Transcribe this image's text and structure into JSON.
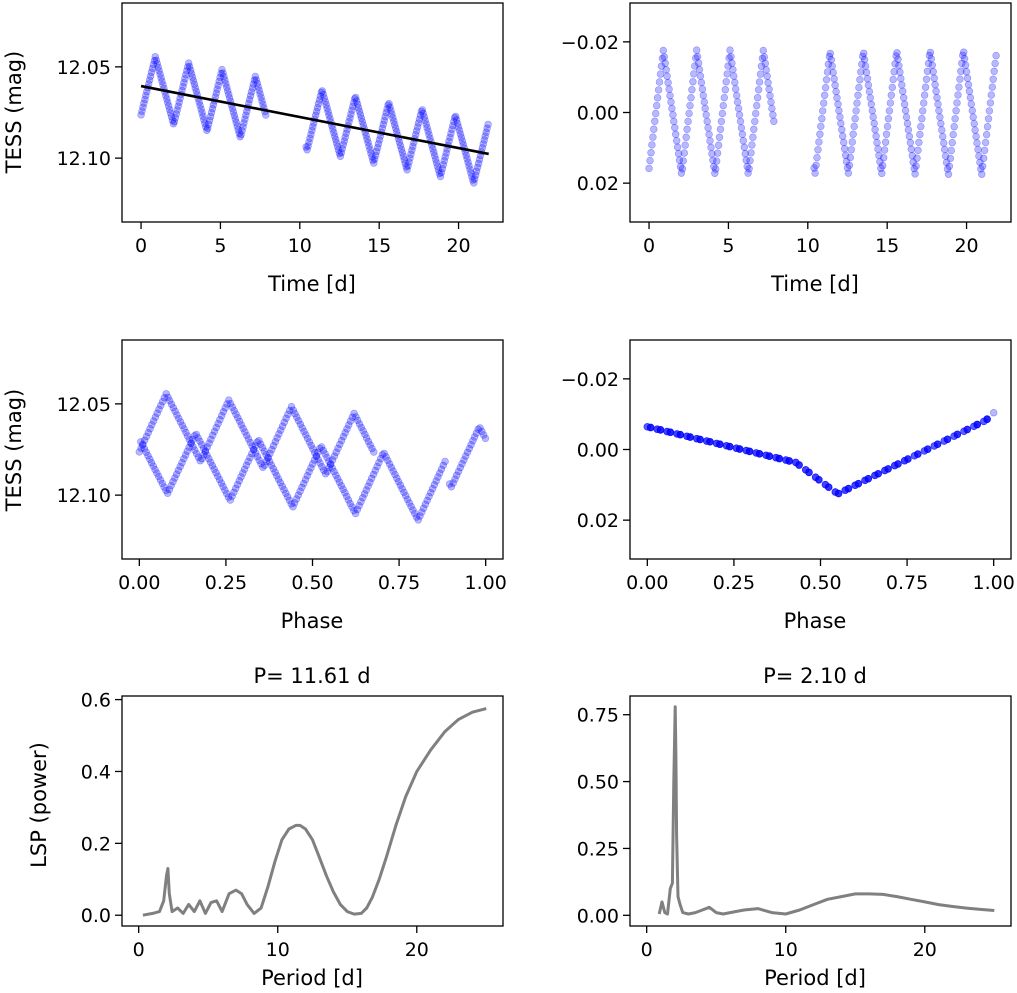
{
  "colors": {
    "points": "#0000ff",
    "trend": "#000000",
    "lsp": "#808080",
    "axes": "#000000"
  },
  "chart_data": [
    {
      "id": "lc_raw",
      "type": "scatter",
      "title": "",
      "xlabel": "Time [d]",
      "ylabel": "TESS (mag)",
      "xlim": [
        -1.2,
        22.8
      ],
      "ylim": [
        12.135,
        12.015
      ],
      "xticks": [
        0,
        5,
        10,
        15,
        20
      ],
      "xtick_labels": [
        "0",
        "5",
        "10",
        "15",
        "20"
      ],
      "yticks": [
        12.05,
        12.1
      ],
      "ytick_labels": [
        "12.05",
        "12.10"
      ],
      "signal": {
        "baseline": 12.0605,
        "slope": 0.0017,
        "amplitude": 0.0175,
        "period_short": 2.1,
        "amp_mod": 0.01,
        "phase": 1.2
      },
      "segments": [
        [
          0,
          7.9
        ],
        [
          10.4,
          21.9
        ]
      ],
      "trend_line": {
        "x": [
          0,
          21.9
        ],
        "y": [
          12.0605,
          12.0977
        ]
      }
    },
    {
      "id": "lc_detrended",
      "type": "scatter",
      "title": "",
      "xlabel": "Time [d]",
      "ylabel": "",
      "xlim": [
        -1.2,
        22.8
      ],
      "ylim": [
        0.031,
        -0.031
      ],
      "xticks": [
        0,
        5,
        10,
        15,
        20
      ],
      "xtick_labels": [
        "0",
        "5",
        "10",
        "15",
        "20"
      ],
      "yticks": [
        -0.02,
        0.0,
        0.02
      ],
      "ytick_labels": [
        "−0.02",
        "0.00",
        "0.02"
      ],
      "signal": {
        "baseline": 0.0,
        "slope": 0,
        "amplitude": 0.0175,
        "period_short": 2.1,
        "amp_mod": 0.01,
        "phase": 1.2
      },
      "segments": [
        [
          0,
          7.9
        ],
        [
          10.4,
          21.9
        ]
      ]
    },
    {
      "id": "phase_long",
      "type": "scatter",
      "title": "",
      "xlabel": "Phase",
      "ylabel": "TESS (mag)",
      "xlim": [
        -0.05,
        1.05
      ],
      "ylim": [
        12.135,
        12.015
      ],
      "xticks": [
        0.0,
        0.25,
        0.5,
        0.75,
        1.0
      ],
      "xtick_labels": [
        "0.00",
        "0.25",
        "0.50",
        "0.75",
        "1.00"
      ],
      "yticks": [
        12.05,
        12.1
      ],
      "ytick_labels": [
        "12.05",
        "12.10"
      ],
      "fold_period": 11.61
    },
    {
      "id": "phase_short",
      "type": "scatter",
      "title": "",
      "xlabel": "Phase",
      "ylabel": "",
      "xlim": [
        -0.05,
        1.05
      ],
      "ylim": [
        0.031,
        -0.031
      ],
      "xticks": [
        0.0,
        0.25,
        0.5,
        0.75,
        1.0
      ],
      "xtick_labels": [
        "0.00",
        "0.25",
        "0.50",
        "0.75",
        "1.00"
      ],
      "yticks": [
        -0.02,
        0.0,
        0.02
      ],
      "ytick_labels": [
        "−0.02",
        "0.00",
        "0.02"
      ],
      "fold_period": 2.1
    },
    {
      "id": "lsp_raw",
      "type": "line",
      "title": "P= 11.61 d",
      "xlabel": "Period [d]",
      "ylabel": "LSP (power)",
      "xlim": [
        -1.2,
        26.2
      ],
      "ylim": [
        -0.03,
        0.61
      ],
      "xticks": [
        0,
        10,
        20
      ],
      "xtick_labels": [
        "0",
        "10",
        "20"
      ],
      "yticks": [
        0.0,
        0.2,
        0.4,
        0.6
      ],
      "ytick_labels": [
        "0.0",
        "0.2",
        "0.4",
        "0.6"
      ],
      "x": [
        0.3,
        1.0,
        1.5,
        1.8,
        2.0,
        2.1,
        2.2,
        2.4,
        2.8,
        3.2,
        3.6,
        4.0,
        4.4,
        4.8,
        5.2,
        5.6,
        6.0,
        6.5,
        7.0,
        7.4,
        7.8,
        8.3,
        8.8,
        9.3,
        9.8,
        10.3,
        10.8,
        11.3,
        11.6,
        12.0,
        12.5,
        13.0,
        13.5,
        14.0,
        14.5,
        15.0,
        15.5,
        16.0,
        16.4,
        16.8,
        17.3,
        17.8,
        18.5,
        19.2,
        20.0,
        21.0,
        22.0,
        23.0,
        24.0,
        25.0
      ],
      "y": [
        0.0,
        0.005,
        0.01,
        0.04,
        0.11,
        0.13,
        0.06,
        0.01,
        0.02,
        0.005,
        0.03,
        0.01,
        0.04,
        0.005,
        0.035,
        0.04,
        0.01,
        0.06,
        0.07,
        0.06,
        0.03,
        0.005,
        0.02,
        0.08,
        0.15,
        0.21,
        0.24,
        0.25,
        0.25,
        0.24,
        0.21,
        0.16,
        0.11,
        0.065,
        0.03,
        0.01,
        0.003,
        0.005,
        0.02,
        0.05,
        0.1,
        0.16,
        0.25,
        0.33,
        0.4,
        0.46,
        0.51,
        0.545,
        0.565,
        0.575
      ]
    },
    {
      "id": "lsp_detrended",
      "type": "line",
      "title": "P= 2.10 d",
      "xlabel": "Period [d]",
      "ylabel": "",
      "xlim": [
        -1.2,
        26.2
      ],
      "ylim": [
        -0.04,
        0.82
      ],
      "xticks": [
        0,
        10,
        20
      ],
      "xtick_labels": [
        "0",
        "10",
        "20"
      ],
      "yticks": [
        0.0,
        0.25,
        0.5,
        0.75
      ],
      "ytick_labels": [
        "0.00",
        "0.25",
        "0.50",
        "0.75"
      ],
      "x": [
        0.9,
        1.1,
        1.3,
        1.5,
        1.7,
        1.85,
        1.95,
        2.05,
        2.1,
        2.15,
        2.25,
        2.4,
        2.6,
        3.0,
        3.5,
        4.0,
        4.5,
        5.0,
        5.5,
        6.0,
        7.0,
        8.0,
        9.0,
        10.0,
        11.0,
        12.0,
        13.0,
        14.0,
        15.0,
        16.0,
        17.0,
        18.0,
        19.0,
        20.0,
        21.0,
        22.0,
        23.0,
        24.0,
        25.0
      ],
      "y": [
        0.005,
        0.05,
        0.01,
        0.005,
        0.1,
        0.12,
        0.5,
        0.78,
        0.6,
        0.3,
        0.07,
        0.04,
        0.01,
        0.005,
        0.01,
        0.02,
        0.03,
        0.01,
        0.005,
        0.01,
        0.02,
        0.025,
        0.01,
        0.005,
        0.02,
        0.04,
        0.06,
        0.07,
        0.08,
        0.08,
        0.078,
        0.07,
        0.06,
        0.05,
        0.04,
        0.033,
        0.027,
        0.022,
        0.018
      ]
    }
  ]
}
